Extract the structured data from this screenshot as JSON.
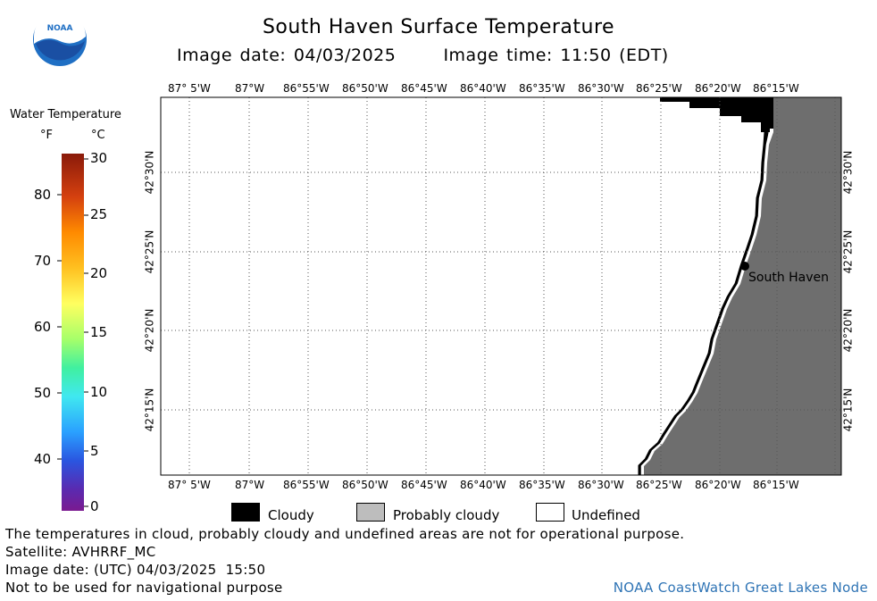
{
  "header": {
    "title": "South Haven Surface Temperature",
    "image_date": "Image date: 04/03/2025",
    "image_time": "Image time: 11:50 (EDT)"
  },
  "logo": {
    "text": "NOAA",
    "icon": "noaa-logo-icon"
  },
  "colorbar": {
    "title": "Water Temperature",
    "unit_f": "°F",
    "unit_c": "°C",
    "f_labels": [
      "80",
      "70",
      "60",
      "50",
      "40"
    ],
    "c_labels": [
      "30",
      "25",
      "20",
      "15",
      "10",
      "5",
      "0"
    ]
  },
  "map": {
    "lon_labels": [
      "87° 5'W",
      "87°W",
      "86°55'W",
      "86°50'W",
      "86°45'W",
      "86°40'W",
      "86°35'W",
      "86°30'W",
      "86°25'W",
      "86°20'W",
      "86°15'W"
    ],
    "lat_labels": [
      "42°30'N",
      "42°25'N",
      "42°20'N",
      "42°15'N"
    ],
    "place_label": "South Haven",
    "colors": {
      "land": "#6e6e6e",
      "cloud": "#000000",
      "water_undefined": "#ffffff"
    }
  },
  "legend": {
    "cloudy": "Cloudy",
    "probably_cloudy": "Probably cloudy",
    "undefined": "Undefined"
  },
  "footer": {
    "disclaimer": "The temperatures in cloud, probably cloudy and undefined areas are not for operational purpose.",
    "satellite": "Satellite: AVHRRF_MC",
    "utc_date": "Image date: (UTC) 04/03/2025  15:50",
    "nav_warning": "Not to be used for navigational purpose",
    "credit": "NOAA CoastWatch Great Lakes Node"
  }
}
